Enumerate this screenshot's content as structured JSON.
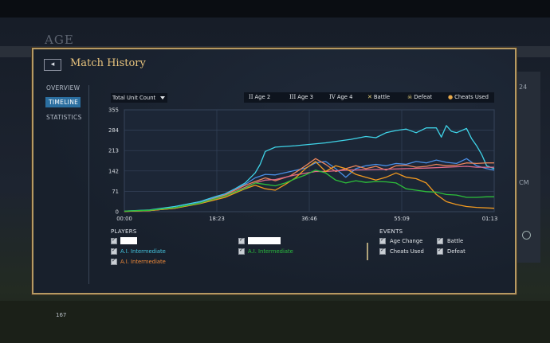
{
  "window": {
    "background_title": "AGE",
    "dialog_title": "Match History",
    "back_label": "◂",
    "side_text_1": "24",
    "side_text_2": "CM",
    "population": "167"
  },
  "nav": {
    "items": [
      {
        "label": "OVERVIEW",
        "active": false
      },
      {
        "label": "TIMELINE",
        "active": true
      },
      {
        "label": "STATISTICS",
        "active": false
      }
    ]
  },
  "metric_select": {
    "selected": "Total Unit Count"
  },
  "legend": [
    {
      "symbol": "II",
      "label": "Age 2",
      "icon": "age-2-icon"
    },
    {
      "symbol": "III",
      "label": "Age 3",
      "icon": "age-3-icon"
    },
    {
      "symbol": "IV",
      "label": "Age 4",
      "icon": "age-4-icon"
    },
    {
      "symbol": "✕",
      "label": "Battle",
      "icon": "battle-icon"
    },
    {
      "symbol": "☠",
      "label": "Defeat",
      "icon": "skull-icon"
    },
    {
      "symbol": "●",
      "label": "Cheats Used",
      "icon": "cheats-icon"
    }
  ],
  "chart_data": {
    "type": "line",
    "xlabel": "",
    "ylabel": "",
    "x_ticks": [
      "00:00",
      "18:23",
      "36:46",
      "55:09",
      "01:13:30"
    ],
    "y_ticks": [
      "0",
      "71",
      "142",
      "213",
      "284",
      "355"
    ],
    "ylim": [
      0,
      355
    ],
    "xlim_minutes": [
      0,
      73.5
    ],
    "grid": true,
    "series": [
      {
        "color": "#3fd4e8",
        "points": [
          [
            0,
            2
          ],
          [
            5,
            6
          ],
          [
            10,
            18
          ],
          [
            15,
            35
          ],
          [
            18,
            52
          ],
          [
            20,
            62
          ],
          [
            22,
            80
          ],
          [
            24,
            100
          ],
          [
            26,
            135
          ],
          [
            27,
            165
          ],
          [
            28,
            210
          ],
          [
            30,
            225
          ],
          [
            34,
            230
          ],
          [
            40,
            240
          ],
          [
            45,
            252
          ],
          [
            48,
            262
          ],
          [
            50,
            258
          ],
          [
            52,
            275
          ],
          [
            54,
            283
          ],
          [
            56,
            288
          ],
          [
            58,
            275
          ],
          [
            60,
            292
          ],
          [
            62,
            292
          ],
          [
            63,
            260
          ],
          [
            64,
            300
          ],
          [
            65,
            280
          ],
          [
            66,
            275
          ],
          [
            68,
            290
          ],
          [
            69,
            255
          ],
          [
            70,
            230
          ],
          [
            71,
            200
          ],
          [
            72,
            160
          ],
          [
            73.5,
            150
          ]
        ]
      },
      {
        "color": "#4a8fe6",
        "points": [
          [
            0,
            1
          ],
          [
            5,
            5
          ],
          [
            10,
            14
          ],
          [
            15,
            32
          ],
          [
            20,
            60
          ],
          [
            24,
            95
          ],
          [
            26,
            118
          ],
          [
            28,
            130
          ],
          [
            30,
            128
          ],
          [
            33,
            140
          ],
          [
            36,
            152
          ],
          [
            38,
            170
          ],
          [
            40,
            175
          ],
          [
            42,
            150
          ],
          [
            44,
            120
          ],
          [
            46,
            150
          ],
          [
            48,
            160
          ],
          [
            50,
            165
          ],
          [
            52,
            160
          ],
          [
            54,
            168
          ],
          [
            56,
            165
          ],
          [
            58,
            175
          ],
          [
            60,
            170
          ],
          [
            62,
            180
          ],
          [
            64,
            172
          ],
          [
            66,
            168
          ],
          [
            68,
            185
          ],
          [
            70,
            160
          ],
          [
            72,
            150
          ],
          [
            73.5,
            145
          ]
        ]
      },
      {
        "color": "#e8845a",
        "points": [
          [
            0,
            1
          ],
          [
            5,
            4
          ],
          [
            10,
            12
          ],
          [
            15,
            30
          ],
          [
            20,
            58
          ],
          [
            24,
            92
          ],
          [
            26,
            105
          ],
          [
            28,
            118
          ],
          [
            30,
            108
          ],
          [
            33,
            125
          ],
          [
            36,
            160
          ],
          [
            38,
            185
          ],
          [
            40,
            165
          ],
          [
            42,
            140
          ],
          [
            44,
            150
          ],
          [
            46,
            160
          ],
          [
            48,
            150
          ],
          [
            50,
            158
          ],
          [
            52,
            145
          ],
          [
            54,
            160
          ],
          [
            56,
            162
          ],
          [
            58,
            155
          ],
          [
            60,
            158
          ],
          [
            62,
            165
          ],
          [
            64,
            160
          ],
          [
            66,
            162
          ],
          [
            68,
            170
          ],
          [
            70,
            168
          ],
          [
            72,
            170
          ],
          [
            73.5,
            170
          ]
        ]
      },
      {
        "color": "#e06a8a",
        "points": [
          [
            0,
            1
          ],
          [
            5,
            4
          ],
          [
            10,
            13
          ],
          [
            15,
            30
          ],
          [
            20,
            55
          ],
          [
            24,
            85
          ],
          [
            26,
            100
          ],
          [
            28,
            110
          ],
          [
            30,
            112
          ],
          [
            34,
            128
          ],
          [
            38,
            140
          ],
          [
            40,
            140
          ],
          [
            44,
            145
          ],
          [
            48,
            146
          ],
          [
            52,
            148
          ],
          [
            56,
            150
          ],
          [
            60,
            152
          ],
          [
            64,
            155
          ],
          [
            68,
            158
          ],
          [
            70,
            155
          ],
          [
            73.5,
            155
          ]
        ]
      },
      {
        "color": "#f29a20",
        "points": [
          [
            0,
            1
          ],
          [
            5,
            4
          ],
          [
            10,
            12
          ],
          [
            15,
            28
          ],
          [
            20,
            50
          ],
          [
            24,
            80
          ],
          [
            26,
            92
          ],
          [
            28,
            80
          ],
          [
            30,
            75
          ],
          [
            32,
            95
          ],
          [
            34,
            118
          ],
          [
            36,
            150
          ],
          [
            38,
            175
          ],
          [
            40,
            140
          ],
          [
            42,
            160
          ],
          [
            44,
            150
          ],
          [
            46,
            130
          ],
          [
            48,
            120
          ],
          [
            50,
            110
          ],
          [
            52,
            120
          ],
          [
            54,
            135
          ],
          [
            56,
            120
          ],
          [
            58,
            115
          ],
          [
            60,
            100
          ],
          [
            62,
            60
          ],
          [
            64,
            35
          ],
          [
            66,
            25
          ],
          [
            68,
            18
          ],
          [
            70,
            15
          ],
          [
            73.5,
            12
          ]
        ]
      },
      {
        "color": "#2dbf3a",
        "points": [
          [
            0,
            2
          ],
          [
            5,
            5
          ],
          [
            10,
            14
          ],
          [
            15,
            30
          ],
          [
            20,
            55
          ],
          [
            24,
            82
          ],
          [
            26,
            100
          ],
          [
            28,
            95
          ],
          [
            30,
            90
          ],
          [
            32,
            100
          ],
          [
            34,
            115
          ],
          [
            36,
            128
          ],
          [
            38,
            145
          ],
          [
            40,
            135
          ],
          [
            42,
            110
          ],
          [
            44,
            100
          ],
          [
            46,
            108
          ],
          [
            48,
            102
          ],
          [
            50,
            105
          ],
          [
            52,
            104
          ],
          [
            54,
            100
          ],
          [
            56,
            80
          ],
          [
            58,
            75
          ],
          [
            60,
            70
          ],
          [
            62,
            68
          ],
          [
            64,
            60
          ],
          [
            66,
            58
          ],
          [
            68,
            50
          ],
          [
            70,
            50
          ],
          [
            72,
            52
          ],
          [
            73.5,
            52
          ]
        ]
      }
    ]
  },
  "players_section": {
    "title": "PLAYERS",
    "players": [
      {
        "name": "",
        "color": "#ffffff",
        "masked": true
      },
      {
        "name": "",
        "color": "#ffffff",
        "masked": true
      },
      {
        "name": "A.I. Intermediate",
        "color": "#45c6e0",
        "masked": false
      },
      {
        "name": "A.I. Intermediate",
        "color": "#2bbf3f",
        "masked": false
      },
      {
        "name": "A.I. Intermediate",
        "color": "#f08a3a",
        "masked": false
      }
    ]
  },
  "events_section": {
    "title": "EVENTS",
    "events": [
      "Age Change",
      "Battle",
      "Cheats Used",
      "Defeat"
    ]
  }
}
